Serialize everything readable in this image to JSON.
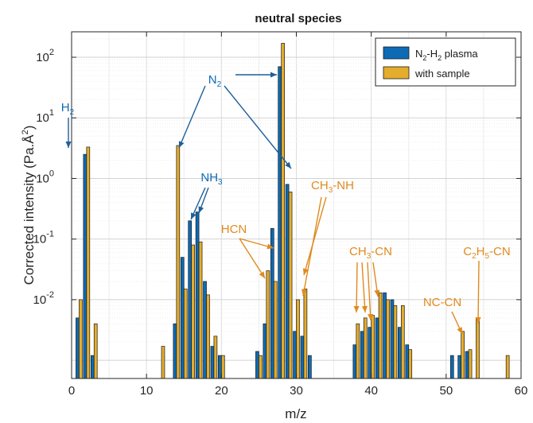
{
  "chart_data": {
    "type": "bar",
    "title": "neutral species",
    "xlabel": "m/z",
    "ylabel": "Corrected intensity (Pa.Å",
    "ylabel_sup": "2",
    "ylabel_close": ")",
    "xlim": [
      0,
      60
    ],
    "ylim_log10": [
      -3.3,
      2.42
    ],
    "yscale": "log",
    "grid": true,
    "legend_position": "top-right",
    "x_ticks": [
      "0",
      "10",
      "20",
      "30",
      "40",
      "50",
      "60"
    ],
    "y_ticks": [
      {
        "base": "10",
        "exp": "2",
        "value": 100
      },
      {
        "base": "10",
        "exp": "1",
        "value": 10
      },
      {
        "base": "10",
        "exp": "0",
        "value": 1
      },
      {
        "base": "10",
        "exp": "-1",
        "value": 0.1
      },
      {
        "base": "10",
        "exp": "-2",
        "value": 0.01
      }
    ],
    "series": [
      {
        "name_main": "N",
        "name_sub1": "2",
        "name_mid": "-H",
        "name_sub2": "2",
        "name_tail": " plasma",
        "color": "#0d6bb5",
        "points": [
          [
            1,
            0.005
          ],
          [
            2,
            2.5
          ],
          [
            3,
            0.0012
          ],
          [
            14,
            0.004
          ],
          [
            15,
            0.05
          ],
          [
            16,
            0.2
          ],
          [
            17,
            0.28
          ],
          [
            18,
            0.02
          ],
          [
            19,
            0.0017
          ],
          [
            20,
            0.0012
          ],
          [
            25,
            0.0014
          ],
          [
            26,
            0.004
          ],
          [
            27,
            0.15
          ],
          [
            28,
            70
          ],
          [
            29,
            0.8
          ],
          [
            30,
            0.003
          ],
          [
            31,
            0.0025
          ],
          [
            32,
            0.0012
          ],
          [
            38,
            0.0018
          ],
          [
            39,
            0.003
          ],
          [
            40,
            0.0035
          ],
          [
            41,
            0.005
          ],
          [
            42,
            0.013
          ],
          [
            43,
            0.01
          ],
          [
            44,
            0.0035
          ],
          [
            45,
            0.0018
          ],
          [
            51,
            0.0012
          ],
          [
            52,
            0.0012
          ],
          [
            53,
            0.0014
          ]
        ]
      },
      {
        "name": "with sample",
        "color": "#e5ad2c",
        "points": [
          [
            1,
            0.01
          ],
          [
            2,
            3.3
          ],
          [
            3,
            0.004
          ],
          [
            12,
            0.0017
          ],
          [
            14,
            3.5
          ],
          [
            15,
            0.015
          ],
          [
            16,
            0.08
          ],
          [
            17,
            0.09
          ],
          [
            18,
            0.012
          ],
          [
            19,
            0.0025
          ],
          [
            20,
            0.0012
          ],
          [
            25,
            0.0012
          ],
          [
            26,
            0.03
          ],
          [
            27,
            0.02
          ],
          [
            28,
            170
          ],
          [
            29,
            0.6
          ],
          [
            30,
            0.01
          ],
          [
            31,
            0.015
          ],
          [
            38,
            0.004
          ],
          [
            39,
            0.005
          ],
          [
            40,
            0.0055
          ],
          [
            41,
            0.013
          ],
          [
            42,
            0.01
          ],
          [
            43,
            0.008
          ],
          [
            44,
            0.008
          ],
          [
            45,
            0.0015
          ],
          [
            52,
            0.003
          ],
          [
            53,
            0.0015
          ],
          [
            54,
            0.005
          ],
          [
            58,
            0.0012
          ]
        ]
      }
    ],
    "annotations": [
      {
        "text": "H",
        "sub": "2",
        "post": "",
        "color": "#0d6bb5"
      },
      {
        "text": "N",
        "sub": "2",
        "post": "",
        "color": "#0d6bb5"
      },
      {
        "text": "NH",
        "sub": "3",
        "post": "",
        "color": "#0d6bb5"
      },
      {
        "text": "CH",
        "sub": "3",
        "post": "-NH",
        "color": "#e08a1e"
      },
      {
        "text": "HCN",
        "sub": "",
        "post": "",
        "color": "#e08a1e"
      },
      {
        "text": "CH",
        "sub": "3",
        "post": "-CN",
        "color": "#e08a1e"
      },
      {
        "text": "NC-CN",
        "sub": "",
        "post": "",
        "color": "#e08a1e"
      },
      {
        "text": "C",
        "sub": "2",
        "post": "H",
        "sub2": "5",
        "post2": "-CN",
        "color": "#e08a1e"
      }
    ]
  }
}
